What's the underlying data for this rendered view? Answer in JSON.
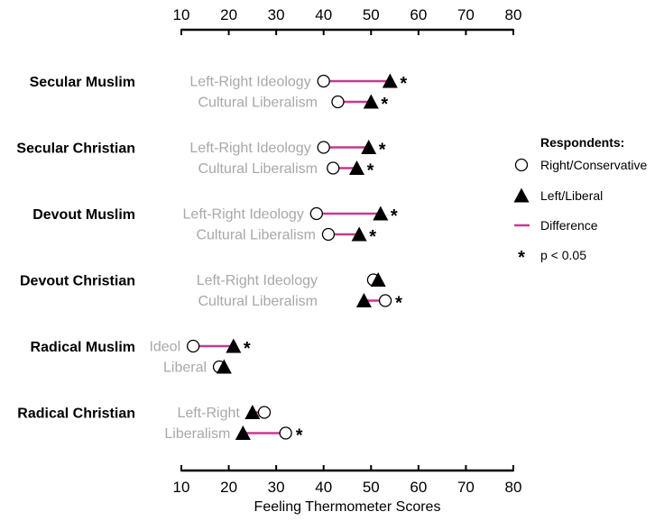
{
  "chart_data": {
    "type": "dumbbell",
    "xlabel": "Feeling Thermometer Scores",
    "xlim": [
      10,
      80
    ],
    "xticks": [
      10,
      20,
      30,
      40,
      50,
      60,
      70,
      80
    ],
    "groups": [
      {
        "name": "Secular Muslim",
        "rows": [
          {
            "label": "Left-Right Ideology",
            "right_conservative": 40,
            "left_liberal": 54,
            "significant": true
          },
          {
            "label": "Cultural Liberalism",
            "right_conservative": 43,
            "left_liberal": 50,
            "significant": true
          }
        ]
      },
      {
        "name": "Secular Christian",
        "rows": [
          {
            "label": "Left-Right Ideology",
            "right_conservative": 40,
            "left_liberal": 49.5,
            "significant": true
          },
          {
            "label": "Cultural Liberalism",
            "right_conservative": 42,
            "left_liberal": 47,
            "significant": true
          }
        ]
      },
      {
        "name": "Devout Muslim",
        "rows": [
          {
            "label": "Left-Right Ideology",
            "right_conservative": 38.5,
            "left_liberal": 52,
            "significant": true
          },
          {
            "label": "Cultural Liberalism",
            "right_conservative": 41,
            "left_liberal": 47.5,
            "significant": true
          }
        ]
      },
      {
        "name": "Devout Christian",
        "rows": [
          {
            "label": "Left-Right Ideology",
            "right_conservative": 50.5,
            "left_liberal": 51.5,
            "significant": false
          },
          {
            "label": "Cultural Liberalism",
            "right_conservative": 53,
            "left_liberal": 48.5,
            "significant": true
          }
        ]
      },
      {
        "name": "Radical Muslim",
        "rows": [
          {
            "label": "Ideol",
            "right_conservative": 12.5,
            "left_liberal": 21,
            "significant": true
          },
          {
            "label": "Liberal",
            "right_conservative": 18,
            "left_liberal": 19,
            "significant": false
          }
        ]
      },
      {
        "name": "Radical Christian",
        "rows": [
          {
            "label": "Left-Right",
            "right_conservative": 27.5,
            "left_liberal": 25,
            "significant": false
          },
          {
            "label": "Liberalism",
            "right_conservative": 32,
            "left_liberal": 23,
            "significant": true
          }
        ]
      }
    ],
    "legend": {
      "title": "Respondents:",
      "items": [
        {
          "label": "Right/Conservative",
          "symbol": "circle"
        },
        {
          "label": "Left/Liberal",
          "symbol": "triangle"
        },
        {
          "label": "Difference",
          "symbol": "line"
        },
        {
          "label": "p < 0.05",
          "symbol": "star"
        }
      ],
      "placement": "right"
    },
    "colors": {
      "difference_line": "#c8398f",
      "row_label": "#a8a8a8",
      "group_label": "#000000",
      "axis": "#000000"
    },
    "significance_marker": "*"
  }
}
